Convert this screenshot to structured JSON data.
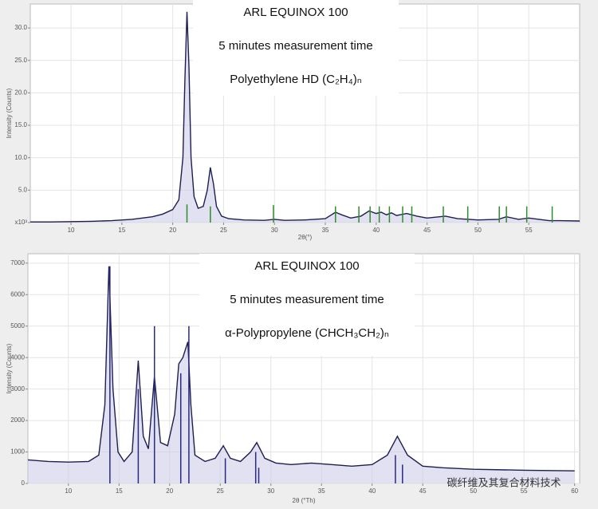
{
  "chart_data": [
    {
      "type": "line",
      "annotations": [
        "ARL EQUINOX 100",
        "5 minutes measurement time",
        "Polyethylene HD (C₂H₄)ₙ"
      ],
      "y_label": "Intensity (Counts)",
      "x_label": "2θ(°)",
      "xlim": [
        6,
        60
      ],
      "ylim": [
        0,
        33.7
      ],
      "xticks": [
        10,
        15,
        20,
        25,
        30,
        35,
        40,
        45,
        50,
        55
      ],
      "yticks": [
        {
          "value": 0,
          "label": "x10³"
        },
        {
          "value": 5,
          "label": "5.0"
        },
        {
          "value": 10,
          "label": "10.0"
        },
        {
          "value": 15,
          "label": "15.0"
        },
        {
          "value": 20,
          "label": "20.0"
        },
        {
          "value": 25,
          "label": "25.0"
        },
        {
          "value": 30,
          "label": "30.0"
        }
      ],
      "grid": true,
      "series": [
        {
          "color": "#1e1e50",
          "x": [
            6,
            8,
            10,
            12,
            14,
            16,
            18,
            19,
            20,
            20.6,
            21,
            21.2,
            21.4,
            21.6,
            21.8,
            22.1,
            22.5,
            23,
            23.4,
            23.7,
            24,
            24.3,
            24.8,
            25.5,
            27,
            29,
            30,
            31,
            33,
            35,
            36,
            36.6,
            37.5,
            38.5,
            39.3,
            40,
            40.5,
            41,
            41.5,
            42,
            43,
            44,
            45,
            46.8,
            48,
            50,
            52,
            52.8,
            54,
            55,
            57,
            58,
            60
          ],
          "values": [
            0.1,
            0.1,
            0.15,
            0.2,
            0.3,
            0.5,
            0.9,
            1.3,
            2.0,
            3.5,
            10,
            22,
            32.5,
            24,
            10,
            4,
            2.2,
            2.5,
            5,
            8.5,
            6,
            2.5,
            1.0,
            0.6,
            0.4,
            0.35,
            0.5,
            0.35,
            0.4,
            0.6,
            1.6,
            1.2,
            0.7,
            1.0,
            1.8,
            1.4,
            1.6,
            1.2,
            1.5,
            1.1,
            1.4,
            1.0,
            0.7,
            1.0,
            0.6,
            0.4,
            0.5,
            0.9,
            0.5,
            0.7,
            0.3,
            0.3,
            0.25
          ]
        }
      ],
      "sticks": {
        "color": "#2e8b2e",
        "x": [
          21.4,
          23.7,
          29.9,
          36.0,
          38.3,
          39.4,
          40.3,
          41.3,
          42.6,
          43.5,
          46.6,
          49.0,
          52.1,
          52.8,
          54.8,
          57.3
        ],
        "values": [
          2.8,
          2.5,
          2.7,
          2.5,
          2.5,
          2.5,
          2.5,
          2.5,
          2.5,
          2.5,
          2.5,
          2.5,
          2.5,
          2.5,
          2.5,
          2.5
        ]
      }
    },
    {
      "type": "line",
      "annotations": [
        "ARL EQUINOX 100",
        "5 minutes measurement time",
        "α-Polypropylene (CHCH₃CH₂)ₙ"
      ],
      "y_label": "Intensity (Counts)",
      "x_label": "2θ (°Th)",
      "xlim": [
        6,
        60.5
      ],
      "ylim": [
        0,
        7300
      ],
      "xticks": [
        10,
        15,
        20,
        25,
        30,
        35,
        40,
        45,
        50,
        55,
        60
      ],
      "yticks": [
        0,
        1000,
        2000,
        3000,
        4000,
        5000,
        6000,
        7000
      ],
      "grid": true,
      "series": [
        {
          "color": "#1e1e50",
          "x": [
            6,
            8,
            10,
            12,
            13,
            13.6,
            14,
            14.4,
            14.9,
            15.5,
            16.3,
            16.9,
            17.4,
            17.9,
            18.5,
            19.1,
            19.8,
            20.5,
            20.9,
            21.3,
            21.8,
            22.1,
            22.5,
            23.5,
            24.5,
            25.3,
            26,
            27,
            28,
            28.6,
            29.4,
            30.5,
            32,
            34,
            36,
            38,
            40,
            41.5,
            42.5,
            43.5,
            45,
            47,
            50,
            55,
            60
          ],
          "values": [
            750,
            700,
            680,
            700,
            900,
            2500,
            6900,
            3000,
            1000,
            700,
            1000,
            3900,
            1500,
            1100,
            3400,
            1300,
            1200,
            2200,
            3800,
            4000,
            4500,
            2500,
            900,
            700,
            800,
            1200,
            800,
            700,
            1000,
            1300,
            800,
            650,
            600,
            650,
            600,
            550,
            600,
            900,
            1500,
            900,
            550,
            500,
            450,
            420,
            400
          ]
        }
      ],
      "sticks": {
        "color": "#2a2a80",
        "x": [
          14.1,
          16.9,
          18.5,
          21.1,
          21.9,
          25.5,
          28.5,
          28.8,
          42.3,
          43.0
        ],
        "values": [
          6900,
          3000,
          5000,
          3500,
          5000,
          800,
          1000,
          500,
          900,
          600
        ]
      }
    }
  ],
  "watermark": "碳纤维及其复合材料技术"
}
